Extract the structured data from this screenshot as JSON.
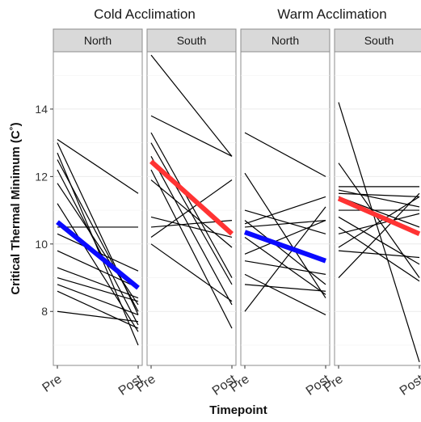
{
  "chart_data": {
    "type": "line",
    "ylabel": "Critical Thermal Minimum (C˚)",
    "xlabel": "Timepoint",
    "x_categories": [
      "Pre",
      "Post"
    ],
    "ylim": [
      6.4,
      15.7
    ],
    "yticks": [
      8,
      10,
      12,
      14
    ],
    "grid": true,
    "groups": [
      {
        "label": "Cold  Acclimation",
        "panels": [
          0,
          1
        ]
      },
      {
        "label": "Warm Acclimation",
        "panels": [
          2,
          3
        ]
      }
    ],
    "panels": [
      {
        "strip": "North",
        "mean": {
          "pre": 10.65,
          "post": 8.7,
          "color": "#0a0aff"
        },
        "lines": [
          [
            13.1,
            11.5
          ],
          [
            13.0,
            7.9
          ],
          [
            12.7,
            7.0
          ],
          [
            12.5,
            8.0
          ],
          [
            12.2,
            7.6
          ],
          [
            11.8,
            8.2
          ],
          [
            11.2,
            7.4
          ],
          [
            10.5,
            10.5
          ],
          [
            10.3,
            9.2
          ],
          [
            9.8,
            8.7
          ],
          [
            9.3,
            8.4
          ],
          [
            9.0,
            8.3
          ],
          [
            8.8,
            7.9
          ],
          [
            8.6,
            7.5
          ],
          [
            8.0,
            7.7
          ]
        ]
      },
      {
        "strip": "South",
        "mean": {
          "pre": 12.45,
          "post": 10.3,
          "color": "#ff3333"
        },
        "lines": [
          [
            15.6,
            12.6
          ],
          [
            13.8,
            12.6
          ],
          [
            13.3,
            9.0
          ],
          [
            13.0,
            8.8
          ],
          [
            12.6,
            8.2
          ],
          [
            12.2,
            7.5
          ],
          [
            11.9,
            9.9
          ],
          [
            10.8,
            10.2
          ],
          [
            10.5,
            10.7
          ],
          [
            10.2,
            11.9
          ],
          [
            10.0,
            8.3
          ]
        ]
      },
      {
        "strip": "North",
        "mean": {
          "pre": 10.35,
          "post": 9.5,
          "color": "#0a0aff"
        },
        "lines": [
          [
            13.3,
            12.0
          ],
          [
            12.1,
            8.4
          ],
          [
            11.0,
            10.3
          ],
          [
            10.7,
            8.8
          ],
          [
            10.6,
            11.4
          ],
          [
            10.5,
            10.7
          ],
          [
            10.2,
            8.5
          ],
          [
            9.7,
            10.7
          ],
          [
            9.5,
            9.1
          ],
          [
            9.1,
            7.9
          ],
          [
            8.8,
            8.6
          ],
          [
            8.0,
            11.1
          ]
        ]
      },
      {
        "strip": "South",
        "mean": {
          "pre": 11.35,
          "post": 10.3,
          "color": "#ff3333"
        },
        "lines": [
          [
            14.2,
            6.5
          ],
          [
            12.4,
            9.0
          ],
          [
            11.7,
            11.7
          ],
          [
            11.6,
            11.1
          ],
          [
            11.5,
            11.4
          ],
          [
            11.4,
            10.5
          ],
          [
            11.0,
            11.0
          ],
          [
            10.8,
            9.4
          ],
          [
            10.5,
            8.9
          ],
          [
            10.3,
            10.9
          ],
          [
            9.9,
            11.4
          ],
          [
            9.8,
            9.6
          ],
          [
            9.0,
            11.5
          ]
        ]
      }
    ]
  }
}
